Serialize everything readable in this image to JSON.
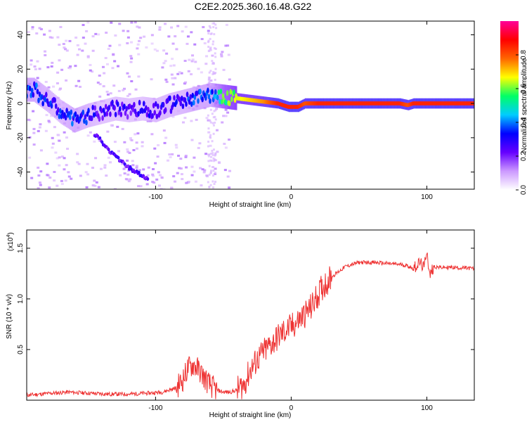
{
  "chart_data": [
    {
      "type": "heatmap",
      "title": "C2E2.2025.360.16.48.G22",
      "xlabel": "Height of straight line (km)",
      "ylabel": "Frequency (Hz)",
      "xlim": [
        -195,
        135
      ],
      "ylim": [
        -50,
        48
      ],
      "xticks": [
        -100,
        0,
        100
      ],
      "xtick_labels": [
        "-100",
        "0",
        "100"
      ],
      "yticks": [
        -40,
        -20,
        0,
        20,
        40
      ],
      "ytick_labels": [
        "-40",
        "-20",
        "0",
        "20",
        "40"
      ],
      "colorbar": {
        "label": "Normalized spectral amplitude",
        "range": [
          0,
          1
        ],
        "ticks": [
          0.0,
          0.2,
          0.4,
          0.6,
          0.8
        ],
        "tick_labels": [
          "0.0",
          "0.2",
          "0.4",
          "0.6",
          "0.8"
        ],
        "colormap": [
          "#ffffff",
          "#cc99ff",
          "#6600ff",
          "#0000ff",
          "#00ccff",
          "#00ff66",
          "#ffff00",
          "#ff6600",
          "#ff0000",
          "#ff0099"
        ]
      },
      "ridge": {
        "x": [
          -190,
          -180,
          -170,
          -160,
          -150,
          -140,
          -130,
          -120,
          -110,
          -100,
          -90,
          -80,
          -70,
          -60,
          -50,
          -40,
          -30,
          -20,
          -10,
          -2,
          5,
          10,
          20,
          40,
          60,
          80,
          86,
          90,
          100,
          110,
          120,
          135
        ],
        "y": [
          8,
          2,
          -5,
          -10,
          -7,
          -5,
          -3,
          -4,
          -3,
          -4,
          -1,
          1,
          3,
          5,
          4,
          3,
          2,
          1,
          0,
          -2,
          -2,
          0,
          0,
          0,
          0,
          0,
          -1,
          0,
          0,
          0,
          0,
          0
        ],
        "amplitude": [
          0.35,
          0.3,
          0.3,
          0.35,
          0.3,
          0.25,
          0.25,
          0.25,
          0.25,
          0.3,
          0.3,
          0.3,
          0.35,
          0.35,
          0.55,
          0.65,
          0.7,
          0.75,
          0.85,
          0.85,
          0.85,
          0.8,
          0.85,
          0.85,
          0.85,
          0.85,
          0.8,
          0.85,
          0.85,
          0.85,
          0.85,
          0.85
        ]
      },
      "secondary_branch": {
        "x": [
          -145,
          -140,
          -135,
          -130,
          -125,
          -120,
          -115,
          -110,
          -105
        ],
        "y": [
          -18,
          -22,
          -27,
          -30,
          -34,
          -37,
          -40,
          -42,
          -44
        ],
        "amplitude": [
          0.3,
          0.28,
          0.28,
          0.3,
          0.28,
          0.28,
          0.3,
          0.32,
          0.3
        ]
      }
    },
    {
      "type": "line",
      "xlabel": "Height of straight line (km)",
      "ylabel": "SNR (10 * v/v)",
      "multiplier_label": "(x10",
      "multiplier_exponent": "4",
      "multiplier_close": ")",
      "xlim": [
        -195,
        135
      ],
      "ylim": [
        0,
        1.68
      ],
      "xticks": [
        -100,
        0,
        100
      ],
      "xtick_labels": [
        "-100",
        "0",
        "100"
      ],
      "yticks": [
        0.5,
        1.0,
        1.5
      ],
      "ytick_labels": [
        "0.5",
        "1.0",
        "1.5"
      ],
      "series": [
        {
          "name": "SNR",
          "color": "#ee3333",
          "x": [
            -195,
            -185,
            -175,
            -165,
            -150,
            -135,
            -120,
            -105,
            -95,
            -85,
            -80,
            -76,
            -72,
            -68,
            -64,
            -60,
            -55,
            -50,
            -45,
            -40,
            -35,
            -30,
            -25,
            -20,
            -15,
            -10,
            -5,
            0,
            5,
            10,
            15,
            20,
            25,
            30,
            35,
            40,
            50,
            60,
            70,
            80,
            85,
            90,
            95,
            98,
            100,
            102,
            105,
            110,
            120,
            135
          ],
          "y": [
            0.05,
            0.06,
            0.07,
            0.08,
            0.07,
            0.06,
            0.06,
            0.07,
            0.08,
            0.12,
            0.2,
            0.32,
            0.35,
            0.3,
            0.22,
            0.15,
            0.1,
            0.08,
            0.08,
            0.1,
            0.15,
            0.3,
            0.4,
            0.48,
            0.55,
            0.62,
            0.68,
            0.72,
            0.78,
            0.85,
            0.92,
            1.05,
            1.15,
            1.22,
            1.27,
            1.32,
            1.36,
            1.36,
            1.35,
            1.34,
            1.33,
            1.3,
            1.36,
            1.3,
            1.5,
            1.22,
            1.32,
            1.31,
            1.31,
            1.3
          ]
        }
      ]
    }
  ]
}
